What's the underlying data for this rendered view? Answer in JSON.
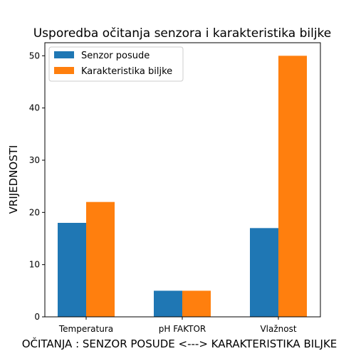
{
  "chart_data": {
    "type": "bar",
    "title": "Usporedba očitanja senzora i karakteristika biljke",
    "xlabel": "OČITANJA : SENZOR POSUDE <---> KARAKTERISTIKA BILJKE",
    "ylabel": "VRIJEDNOSTI",
    "categories": [
      "Temperatura",
      "pH FAKTOR",
      "Vlažnost"
    ],
    "series": [
      {
        "name": "Senzor posude",
        "values": [
          18,
          5,
          17
        ],
        "color": "#1f77b4"
      },
      {
        "name": "Karakteristika biljke",
        "values": [
          22,
          5,
          50
        ],
        "color": "#ff7f0e"
      }
    ],
    "ylim": [
      0,
      52.5
    ],
    "yticks": [
      0,
      10,
      20,
      30,
      40,
      50
    ],
    "grid": false,
    "legend_position": "top-left"
  }
}
